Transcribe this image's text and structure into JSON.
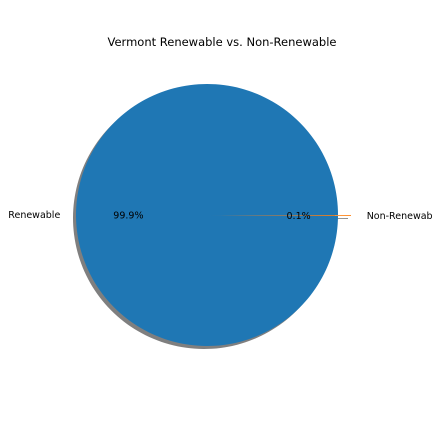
{
  "chart_data": {
    "type": "pie",
    "title": "Vermont Renewable vs. Non-Renewable",
    "labels": [
      "Renewable",
      "Non-Renewable"
    ],
    "values": [
      99.9,
      0.1
    ],
    "percent_labels": [
      "99.9%",
      "0.1%"
    ],
    "colors": [
      "#1f77b4",
      "#ff7f0e"
    ],
    "exploded": [
      false,
      true
    ],
    "shadow": true,
    "start_angle_deg": 0
  }
}
